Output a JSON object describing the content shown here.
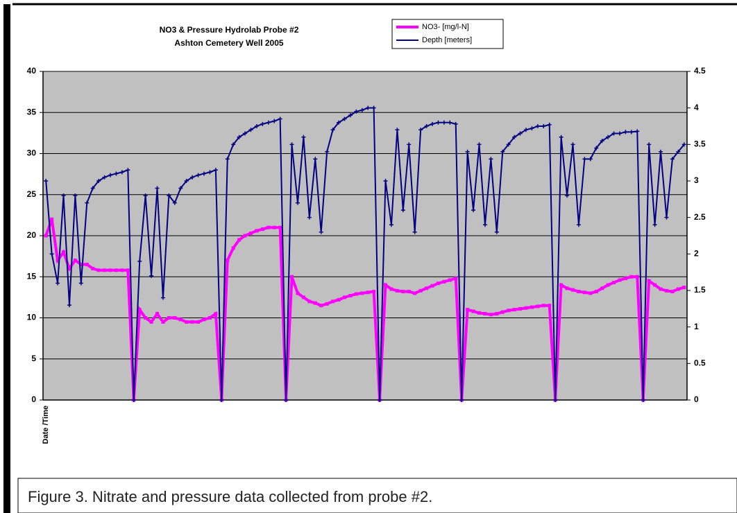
{
  "chart_data": {
    "type": "line",
    "title": [
      "NO3 & Pressure Hydrolab Probe #2",
      "Ashton Cemetery Well 2005"
    ],
    "caption": "Figure 3. Nitrate and pressure data collected from probe #2.",
    "categories": [
      "Date /Time",
      null,
      null,
      null,
      null,
      null,
      null,
      null,
      null,
      null,
      null,
      null,
      null,
      null,
      null,
      null,
      null,
      null,
      null,
      null,
      null,
      null,
      null,
      null,
      null,
      null,
      null,
      null,
      null,
      null,
      null,
      null,
      null,
      null,
      null,
      null,
      null,
      null,
      null,
      null,
      null,
      null,
      null,
      null,
      null,
      null,
      null,
      null,
      null,
      null,
      null,
      null,
      null,
      null,
      null,
      null,
      null,
      null,
      null,
      null,
      null,
      null,
      null,
      null,
      null,
      null,
      null,
      null,
      null,
      null,
      null,
      null,
      null,
      null,
      null,
      null,
      null,
      null,
      null,
      null,
      null,
      null,
      null,
      null,
      null,
      null,
      null,
      null,
      null,
      null,
      null,
      null,
      null,
      null,
      null,
      null,
      null,
      null,
      null,
      null,
      null,
      null,
      null,
      null,
      null,
      null,
      null,
      null,
      null,
      null
    ],
    "ylim": [
      0,
      40
    ],
    "yticks": [
      0,
      5,
      10,
      15,
      20,
      25,
      30,
      35,
      40
    ],
    "y2lim": [
      0,
      4.5
    ],
    "y2ticks": [
      0,
      0.5,
      1,
      1.5,
      2,
      2.5,
      3,
      3.5,
      4,
      4.5
    ],
    "grid": true,
    "legend": "top",
    "series": [
      {
        "name": "NO3- [mg/l-N]",
        "color": "#ff00ff",
        "values": [
          20,
          22,
          17,
          18,
          16,
          17,
          16.5,
          16.5,
          16,
          15.8,
          15.8,
          15.8,
          15.8,
          15.8,
          15.8,
          0,
          11,
          10,
          9.5,
          10.5,
          9.5,
          10,
          10,
          9.8,
          9.5,
          9.5,
          9.5,
          9.8,
          10,
          10.5,
          0,
          17,
          18.5,
          19.5,
          20,
          20.3,
          20.6,
          20.8,
          21,
          21,
          21,
          0,
          15,
          13,
          12.5,
          12,
          11.8,
          11.5,
          11.7,
          12,
          12.2,
          12.5,
          12.7,
          12.9,
          13,
          13.1,
          13.2,
          0,
          14,
          13.5,
          13.3,
          13.2,
          13.2,
          13,
          13.3,
          13.6,
          13.9,
          14.2,
          14.4,
          14.6,
          14.8,
          0,
          11,
          10.8,
          10.6,
          10.5,
          10.4,
          10.5,
          10.7,
          10.9,
          11,
          11.1,
          11.2,
          11.3,
          11.4,
          11.5,
          11.5,
          0,
          14,
          13.6,
          13.4,
          13.2,
          13.1,
          13,
          13.2,
          13.6,
          14,
          14.3,
          14.6,
          14.8,
          15,
          15,
          0,
          14.5,
          14,
          13.5,
          13.3,
          13.2,
          13.5,
          13.7
        ]
      },
      {
        "name": "Depth [meters]",
        "color": "#000080",
        "axis": "y2",
        "values": [
          3.0,
          2.0,
          1.6,
          2.8,
          1.3,
          2.8,
          1.6,
          2.7,
          2.9,
          3.0,
          3.05,
          3.08,
          3.1,
          3.12,
          3.15,
          0,
          1.9,
          2.8,
          1.7,
          2.9,
          1.4,
          2.8,
          2.7,
          2.9,
          3.0,
          3.05,
          3.08,
          3.1,
          3.12,
          3.15,
          0,
          3.3,
          3.5,
          3.6,
          3.65,
          3.7,
          3.75,
          3.78,
          3.8,
          3.82,
          3.85,
          0,
          3.5,
          2.7,
          3.6,
          2.5,
          3.3,
          2.3,
          3.4,
          3.7,
          3.8,
          3.85,
          3.9,
          3.95,
          3.97,
          4.0,
          4.0,
          0,
          3.0,
          2.4,
          3.7,
          2.6,
          3.5,
          2.3,
          3.7,
          3.75,
          3.78,
          3.8,
          3.8,
          3.8,
          3.78,
          0,
          3.4,
          2.6,
          3.5,
          2.4,
          3.3,
          2.3,
          3.4,
          3.5,
          3.6,
          3.65,
          3.7,
          3.72,
          3.75,
          3.75,
          3.77,
          0,
          3.6,
          2.8,
          3.5,
          2.4,
          3.3,
          3.3,
          3.45,
          3.55,
          3.6,
          3.65,
          3.65,
          3.67,
          3.67,
          3.68,
          0,
          3.5,
          2.4,
          3.4,
          2.5,
          3.3,
          3.4,
          3.5
        ]
      }
    ]
  }
}
